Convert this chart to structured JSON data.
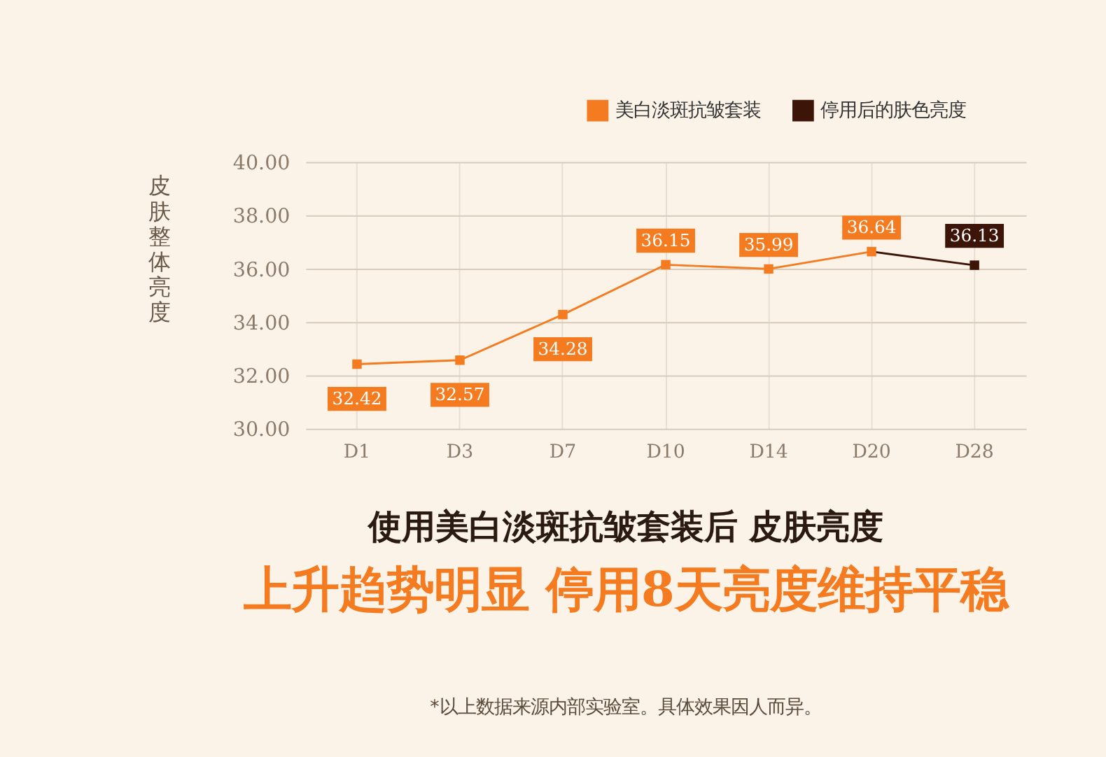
{
  "chart_data": {
    "type": "line",
    "title": "使用美白淡斑抗皱套装后 皮肤亮度",
    "subtitle": "上升趋势明显 停用8天亮度维持平稳",
    "ylabel": "皮肤整体亮度",
    "categories": [
      "D1",
      "D3",
      "D7",
      "D10",
      "D14",
      "D20",
      "D28"
    ],
    "series": [
      {
        "name": "美白淡斑抗皱套装",
        "color": "#f47b20",
        "values": [
          32.42,
          32.57,
          34.28,
          36.15,
          35.99,
          36.64,
          null
        ],
        "value_labels": [
          "32.42",
          "32.57",
          "34.28",
          "36.15",
          "35.99",
          "36.64",
          null
        ]
      },
      {
        "name": "停用后的肤色亮度",
        "color": "#3d1408",
        "values": [
          null,
          null,
          null,
          null,
          null,
          36.64,
          36.13
        ],
        "value_labels": [
          null,
          null,
          null,
          null,
          null,
          null,
          "36.13"
        ]
      }
    ],
    "ylim": [
      30,
      40
    ],
    "yticks": [
      {
        "value": 30,
        "label": "30.00"
      },
      {
        "value": 32,
        "label": "32.00"
      },
      {
        "value": 34,
        "label": "34.00"
      },
      {
        "value": 36,
        "label": "36.00"
      },
      {
        "value": 38,
        "label": "38.00"
      },
      {
        "value": 40,
        "label": "40.00"
      }
    ],
    "grid": true,
    "legend": "top right",
    "marker": "square",
    "line_style": "solid",
    "annotations": [
      "*以上数据来源内部实验室。具体效果因人而异。"
    ]
  }
}
